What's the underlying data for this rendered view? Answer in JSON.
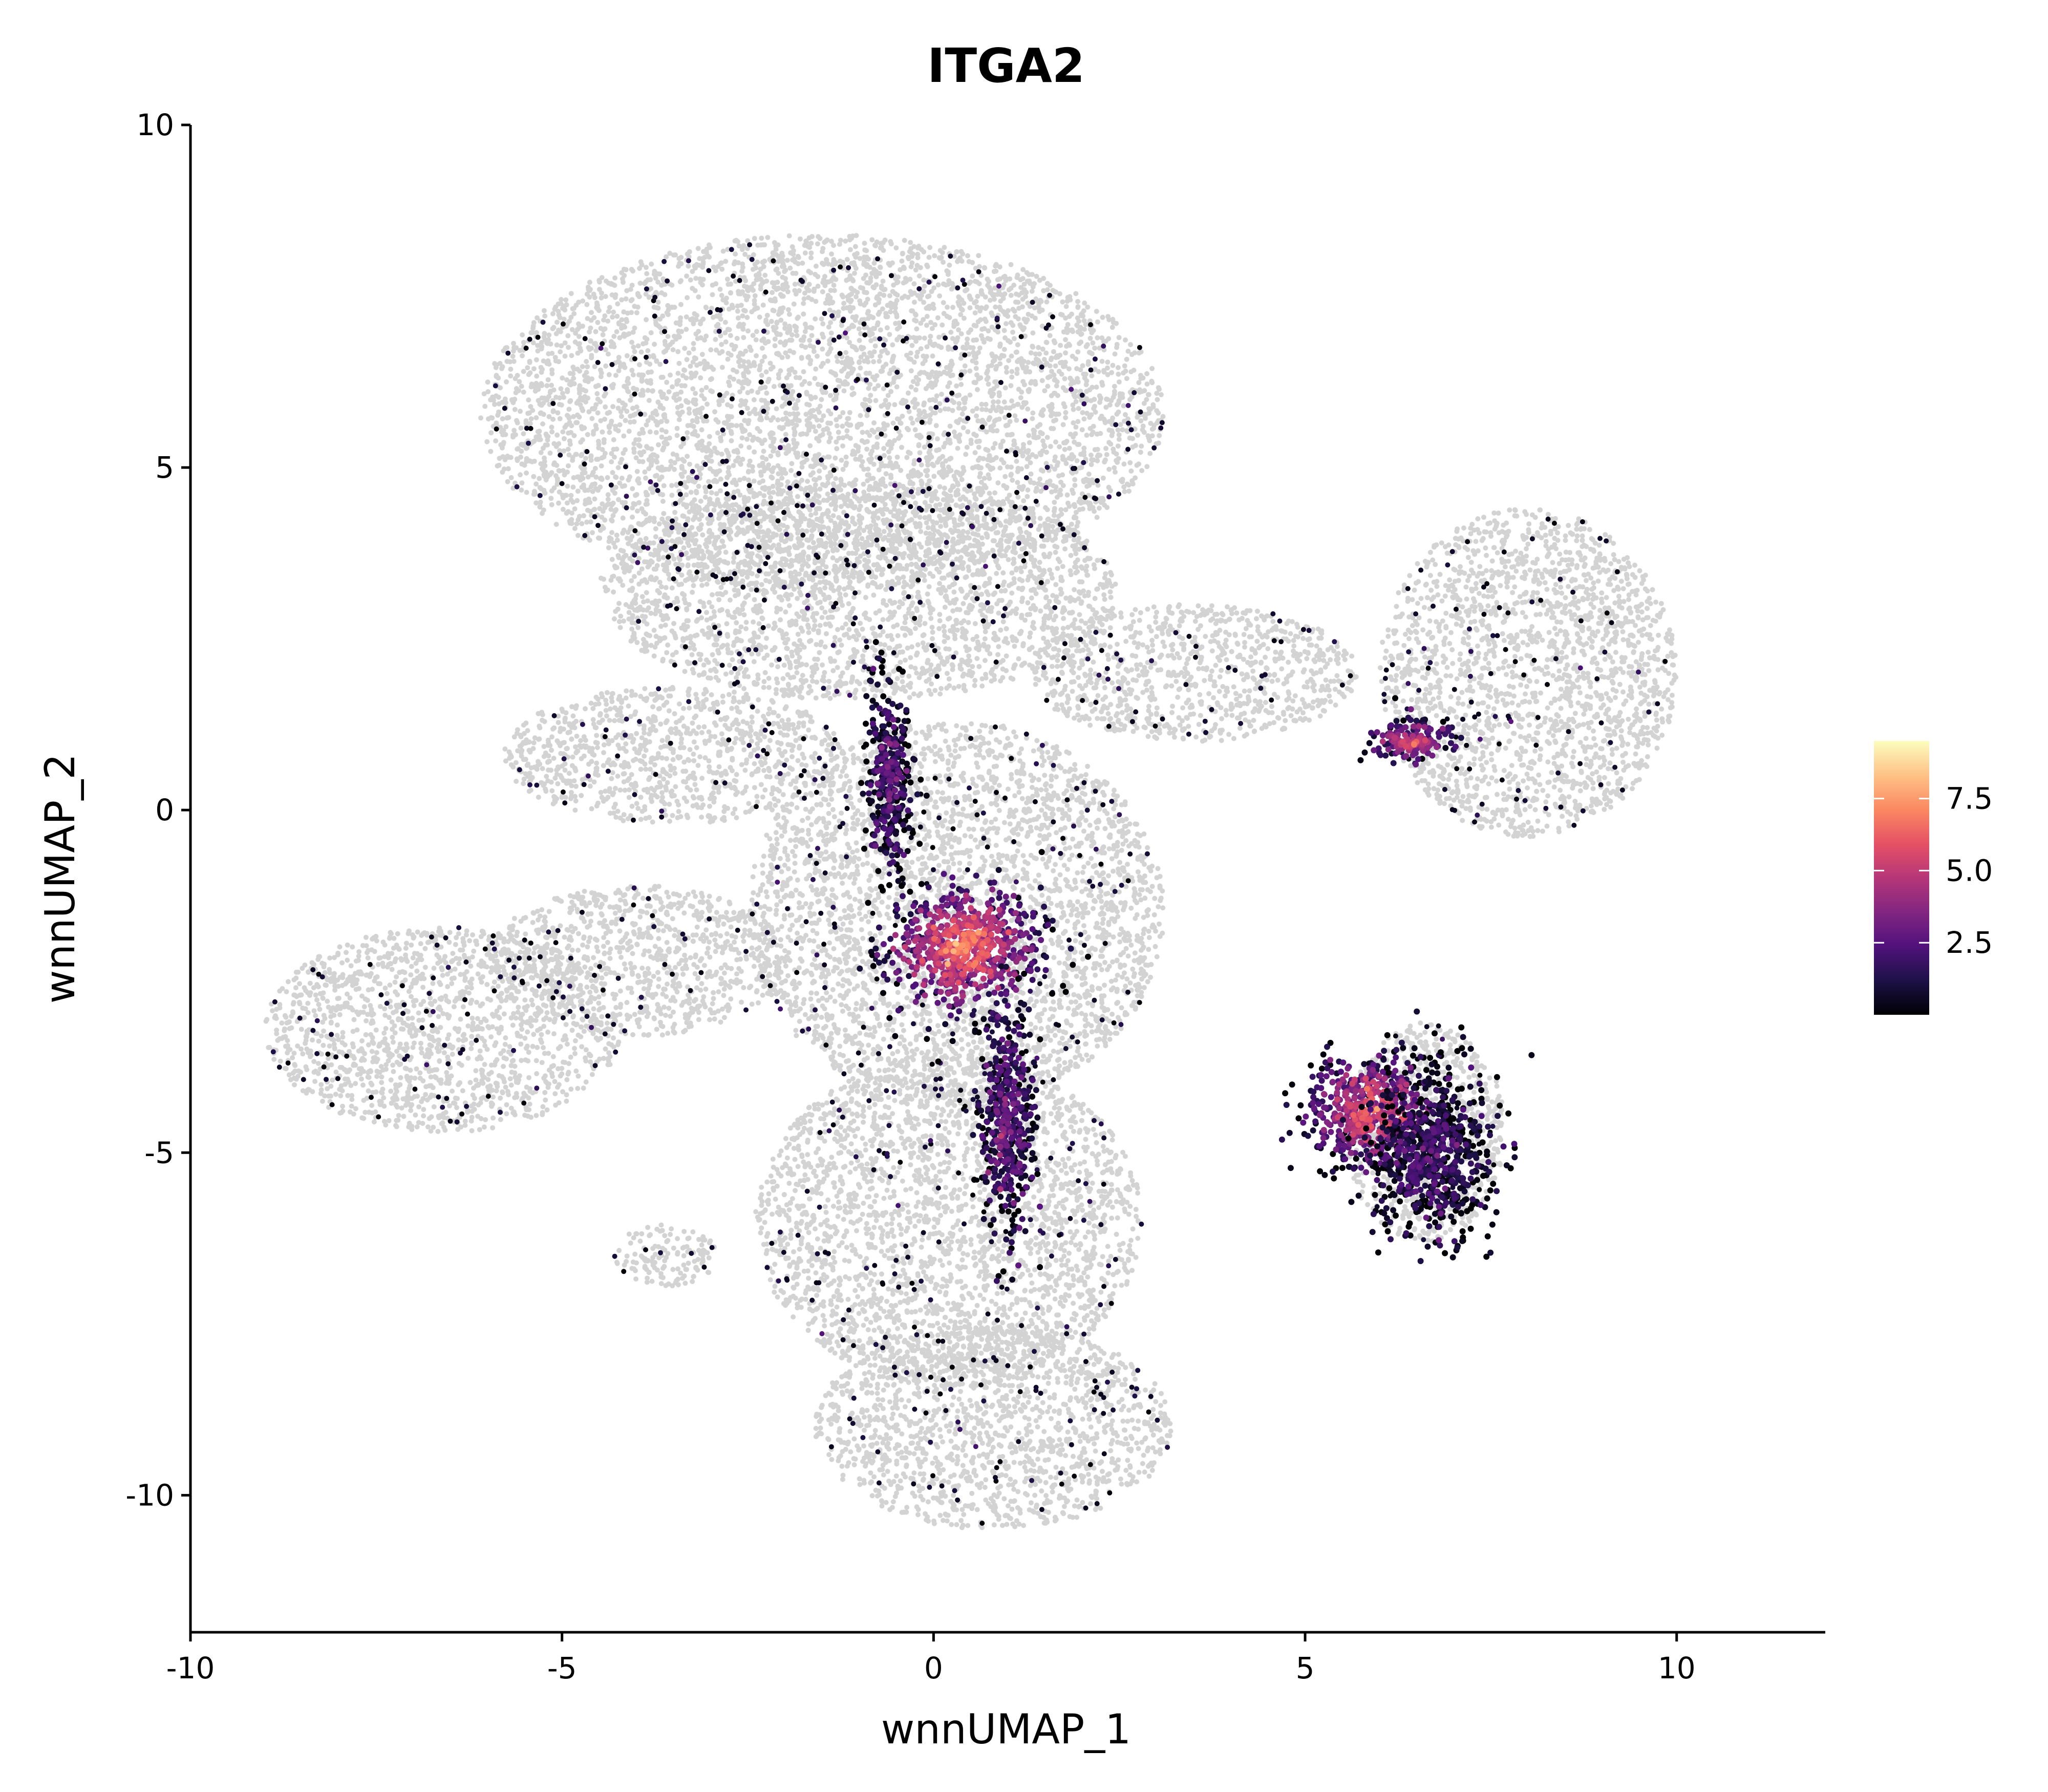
{
  "chart_data": {
    "type": "scatter",
    "title": "ITGA2",
    "xlabel": "wnnUMAP_1",
    "ylabel": "wnnUMAP_2",
    "xlim": [
      -10,
      12
    ],
    "ylim": [
      -12,
      10
    ],
    "x_ticks": [
      -10,
      -5,
      0,
      5,
      10
    ],
    "y_ticks": [
      -10,
      -5,
      0,
      5,
      10
    ],
    "x_tick_labels": [
      "-10",
      "-5",
      "0",
      "5",
      "10"
    ],
    "y_tick_labels": [
      "-10",
      "-5",
      "0",
      "5",
      "10"
    ],
    "grid": false,
    "background_point_color": "#d3d3d3",
    "color_scale": {
      "name": "magma",
      "range": [
        0,
        9.5
      ],
      "ticks": [
        2.5,
        5.0,
        7.5
      ],
      "tick_labels": [
        "2.5",
        "5.0",
        "7.5"
      ],
      "stops": [
        "#000004",
        "#1d1147",
        "#51127c",
        "#822681",
        "#b63679",
        "#e65164",
        "#fb8861",
        "#fec287",
        "#fcfdbf"
      ],
      "legend_position": "right"
    },
    "background_regions": [
      {
        "name": "top-cluster",
        "cx": -1.5,
        "cy": 5.8,
        "rx": 4.6,
        "ry": 2.6
      },
      {
        "name": "top-cluster-lower",
        "cx": -1.0,
        "cy": 3.2,
        "rx": 3.5,
        "ry": 1.6
      },
      {
        "name": "left-arm",
        "cx": -3.5,
        "cy": 0.8,
        "rx": 2.3,
        "ry": 1.0
      },
      {
        "name": "center-body",
        "cx": 0.3,
        "cy": -1.5,
        "rx": 2.8,
        "ry": 2.8
      },
      {
        "name": "left-cluster",
        "cx": -6.6,
        "cy": -3.2,
        "rx": 2.4,
        "ry": 1.5
      },
      {
        "name": "left-bridge",
        "cx": -4.0,
        "cy": -2.2,
        "rx": 2.0,
        "ry": 1.1
      },
      {
        "name": "bottom-body",
        "cx": 0.2,
        "cy": -6.0,
        "rx": 2.6,
        "ry": 2.4
      },
      {
        "name": "bottom-cluster",
        "cx": 0.8,
        "cy": -9.0,
        "rx": 2.4,
        "ry": 1.5
      },
      {
        "name": "small-left-blob",
        "cx": -3.6,
        "cy": -6.5,
        "rx": 0.7,
        "ry": 0.45
      },
      {
        "name": "right-cluster",
        "cx": 8.0,
        "cy": 2.0,
        "rx": 2.0,
        "ry": 2.4
      },
      {
        "name": "right-bottom-cluster",
        "cx": 6.6,
        "cy": -4.7,
        "rx": 1.1,
        "ry": 1.6
      },
      {
        "name": "bridge",
        "cx": 3.5,
        "cy": 2.0,
        "rx": 2.2,
        "ry": 1.0
      }
    ],
    "expression_regions": [
      {
        "name": "center-hotspot",
        "cx": 0.4,
        "cy": -2.0,
        "rx": 1.0,
        "ry": 0.9,
        "level": 6.5
      },
      {
        "name": "center-stem",
        "cx": -0.6,
        "cy": 0.5,
        "rx": 0.3,
        "ry": 1.4,
        "level": 2.0
      },
      {
        "name": "center-tail",
        "cx": 1.0,
        "cy": -4.5,
        "rx": 0.35,
        "ry": 1.6,
        "level": 2.5
      },
      {
        "name": "right-bottom-hotspot",
        "cx": 5.9,
        "cy": -4.4,
        "rx": 0.9,
        "ry": 0.8,
        "level": 5.5
      },
      {
        "name": "right-bottom-dark",
        "cx": 6.7,
        "cy": -5.0,
        "rx": 0.8,
        "ry": 1.2,
        "level": 1.5
      },
      {
        "name": "right-small-hotspot",
        "cx": 6.4,
        "cy": 1.0,
        "rx": 0.55,
        "ry": 0.3,
        "level": 5.0
      }
    ]
  }
}
